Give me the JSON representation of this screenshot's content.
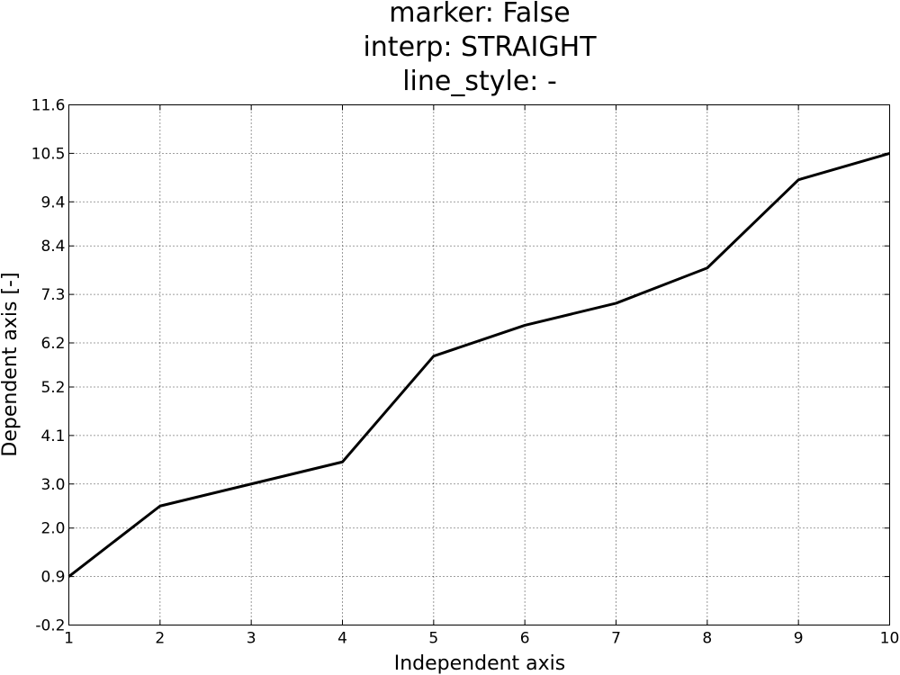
{
  "chart_data": {
    "type": "line",
    "title_lines": [
      "marker: False",
      "interp: STRAIGHT",
      "line_style: -"
    ],
    "xlabel": "Independent axis",
    "ylabel": "Dependent axis [-]",
    "xlim": [
      1,
      10
    ],
    "ylim": [
      -0.2,
      11.6
    ],
    "x_ticks": [
      "1",
      "2",
      "3",
      "4",
      "5",
      "6",
      "7",
      "8",
      "9",
      "10"
    ],
    "y_ticks": [
      "-0.2",
      "0.9",
      "2.0",
      "3.0",
      "4.1",
      "5.2",
      "6.2",
      "7.3",
      "8.4",
      "9.4",
      "10.5",
      "11.6"
    ],
    "grid": true,
    "series": [
      {
        "color": "#000000",
        "x": [
          1,
          2,
          3,
          4,
          5,
          6,
          7,
          8,
          9,
          10
        ],
        "y": [
          0.9,
          2.5,
          3.0,
          3.5,
          5.9,
          6.6,
          7.1,
          7.9,
          9.9,
          10.5
        ]
      }
    ]
  }
}
